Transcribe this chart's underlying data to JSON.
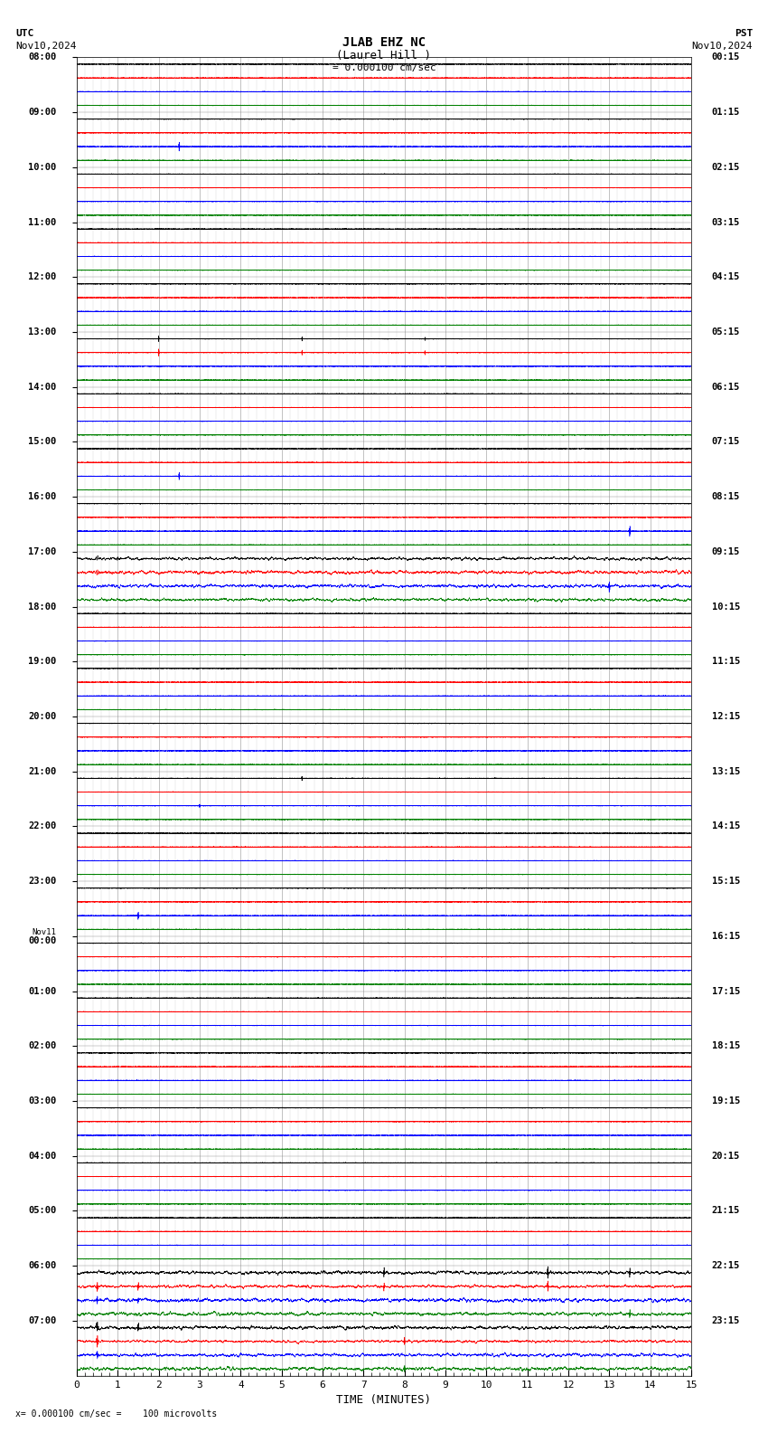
{
  "title_line1": "JLAB EHZ NC",
  "title_line2": "(Laurel Hill )",
  "scale_text": "= 0.000100 cm/sec",
  "utc_label": "UTC",
  "utc_date": "Nov10,2024",
  "pst_label": "PST",
  "pst_date": "Nov10,2024",
  "bottom_label": "= 0.000100 cm/sec =    100 microvolts",
  "xlabel": "TIME (MINUTES)",
  "bg_color": "#ffffff",
  "grid_color": "#aaaaaa",
  "trace_colors": [
    "#000000",
    "#ff0000",
    "#0000ff",
    "#008000"
  ],
  "num_rows": 48,
  "minutes_per_row": 15,
  "traces_per_row": 4,
  "left_labels_utc": [
    "08:00",
    "09:00",
    "10:00",
    "11:00",
    "12:00",
    "13:00",
    "14:00",
    "15:00",
    "16:00",
    "17:00",
    "18:00",
    "19:00",
    "20:00",
    "21:00",
    "22:00",
    "23:00",
    "Nov11\n00:00",
    "01:00",
    "02:00",
    "03:00",
    "04:00",
    "05:00",
    "06:00",
    "07:00"
  ],
  "right_labels_pst": [
    "00:15",
    "01:15",
    "02:15",
    "03:15",
    "04:15",
    "05:15",
    "06:15",
    "07:15",
    "08:15",
    "09:15",
    "10:15",
    "11:15",
    "12:15",
    "13:15",
    "14:15",
    "15:15",
    "16:15",
    "17:15",
    "18:15",
    "19:15",
    "20:15",
    "21:15",
    "22:15",
    "23:15"
  ],
  "noise_scale": 0.06,
  "num_points": 9000,
  "seed": 42
}
